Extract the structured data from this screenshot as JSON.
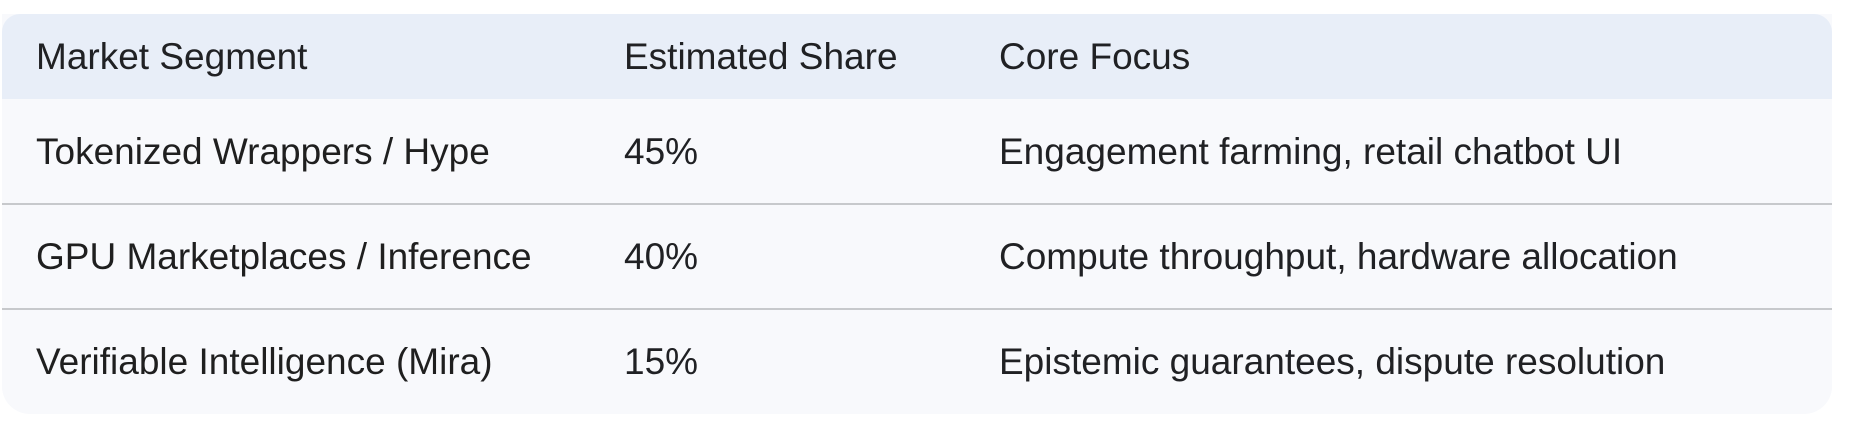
{
  "table": {
    "headers": [
      "Market Segment",
      "Estimated Share",
      "Core Focus"
    ],
    "rows": [
      {
        "market_segment": "Tokenized Wrappers / Hype",
        "estimated_share": "45%",
        "core_focus": "Engagement farming, retail chatbot UI"
      },
      {
        "market_segment": "GPU Marketplaces / Inference",
        "estimated_share": "40%",
        "core_focus": "Compute throughput, hardware allocation"
      },
      {
        "market_segment": "Verifiable Intelligence (Mira)",
        "estimated_share": "15%",
        "core_focus": "Epistemic guarantees, dispute resolution"
      }
    ]
  },
  "colors": {
    "header_background": "#e8eef8",
    "row_background": "#f8f9fc",
    "divider": "#c7c9cc",
    "text": "#1f1f1f"
  }
}
